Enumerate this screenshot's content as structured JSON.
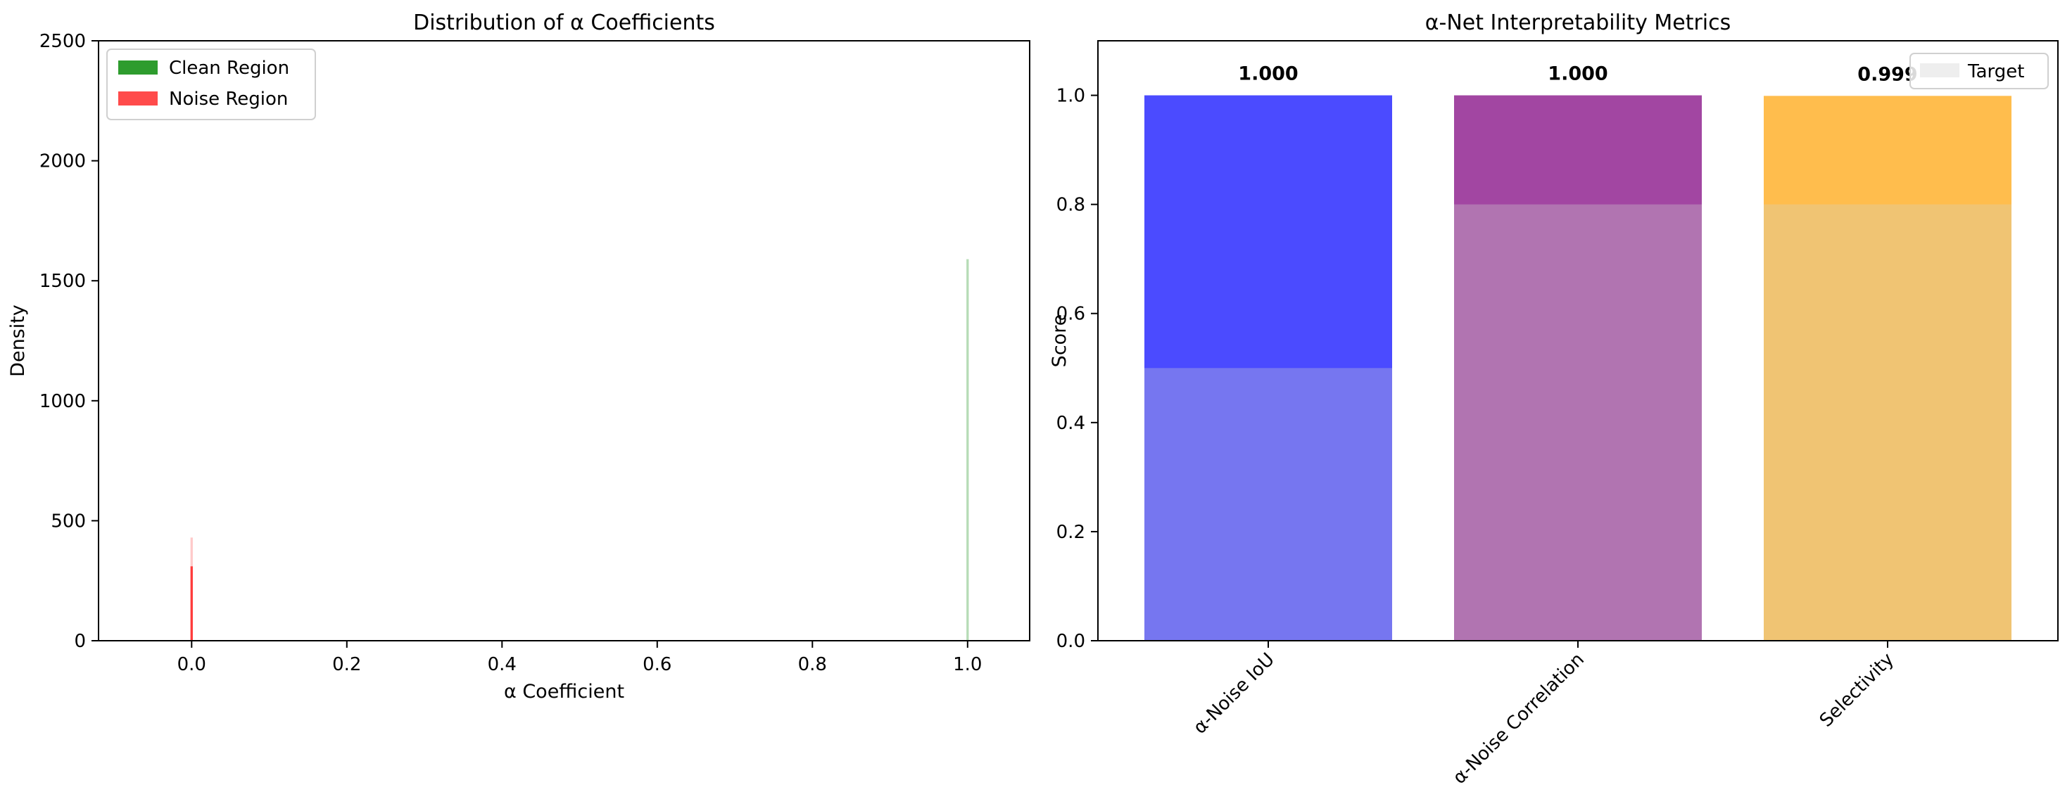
{
  "chart_data": [
    {
      "type": "histogram",
      "title": "Distribution of α Coefficients",
      "xlabel": "α Coefficient",
      "ylabel": "Density",
      "xlim": [
        -0.12,
        1.08
      ],
      "ylim": [
        0,
        2500
      ],
      "xticks": [
        0.0,
        0.2,
        0.4,
        0.6,
        0.8,
        1.0
      ],
      "xtick_labels": [
        "0.0",
        "0.2",
        "0.4",
        "0.6",
        "0.8",
        "1.0"
      ],
      "yticks": [
        0,
        500,
        1000,
        1500,
        2000,
        2500
      ],
      "ytick_labels": [
        "0",
        "500",
        "1000",
        "1500",
        "2000",
        "2500"
      ],
      "legend_position": "upper-left",
      "series": [
        {
          "name": "Clean Region",
          "color": "#2e9c2e",
          "bins": [
            {
              "x": 1.0,
              "density": 1590
            }
          ]
        },
        {
          "name": "Noise Region",
          "color": "#ff2b2b",
          "bins": [
            {
              "x": 0.0,
              "density": 430
            },
            {
              "x": 0.0,
              "density": 310
            }
          ]
        }
      ]
    },
    {
      "type": "bar",
      "title": "α-Net Interpretability Metrics",
      "ylabel": "Score",
      "xlabel": "",
      "ylim": [
        0,
        1.1
      ],
      "yticks": [
        0.0,
        0.2,
        0.4,
        0.6,
        0.8,
        1.0
      ],
      "ytick_labels": [
        "0.0",
        "0.2",
        "0.4",
        "0.6",
        "0.8",
        "1.0"
      ],
      "categories": [
        "α-Noise IoU",
        "α-Noise Correlation",
        "Selectivity"
      ],
      "values": [
        1.0,
        1.0,
        0.999
      ],
      "value_labels": [
        "1.000",
        "1.000",
        "0.999"
      ],
      "bar_colors": [
        "#4b4bff",
        "#a246a2",
        "#ffbd4d"
      ],
      "target": {
        "name": "Target",
        "values": [
          0.5,
          0.8,
          0.8
        ],
        "colors": [
          "#7676f0",
          "#b174b1",
          "#f0c473"
        ]
      },
      "legend_position": "upper-right"
    }
  ]
}
